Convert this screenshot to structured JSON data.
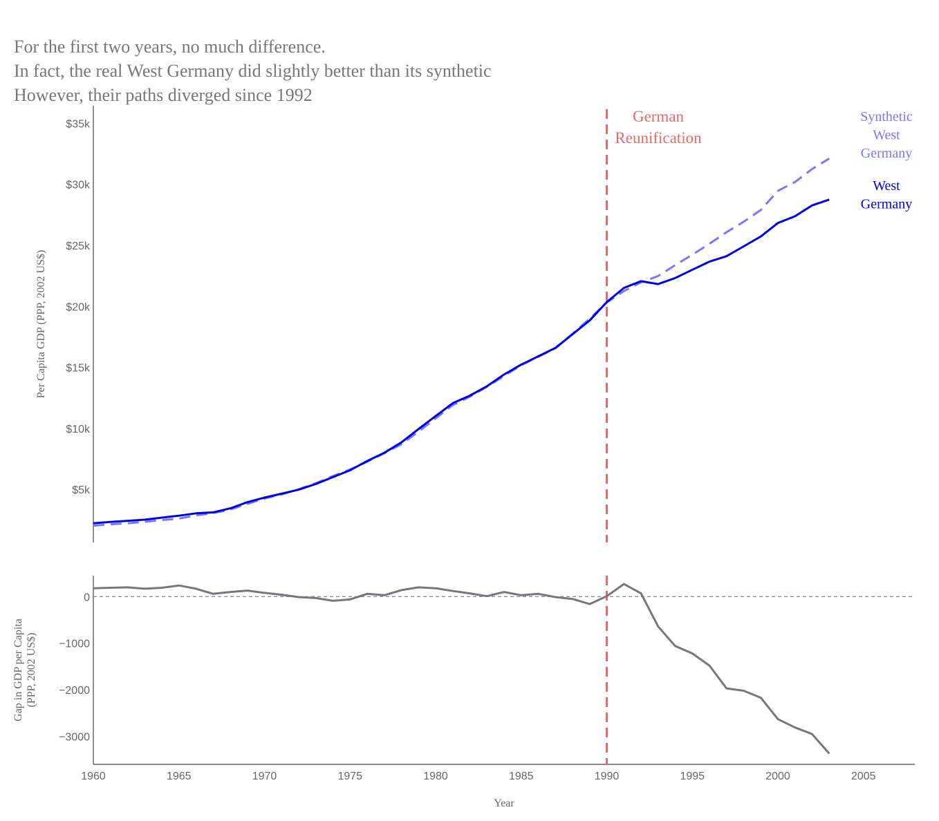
{
  "title_lines": [
    "For the first two years, no much difference.",
    "In fact, the real West Germany did slightly better than its synthetic",
    "However, their paths diverged since 1992"
  ],
  "chart_data": [
    {
      "type": "line",
      "panel": "top",
      "ylabel": "Per Capita GDP (PPP, 2002 US$)",
      "yticks": [
        5000,
        10000,
        15000,
        20000,
        25000,
        30000,
        35000
      ],
      "ytick_labels": [
        "$5k",
        "$10k",
        "$15k",
        "$20k",
        "$25k",
        "$30k",
        "$35k"
      ],
      "xlim": [
        1960,
        2008
      ],
      "ylim": [
        700,
        36500
      ],
      "grid": false,
      "x": [
        1960,
        1961,
        1962,
        1963,
        1964,
        1965,
        1966,
        1967,
        1968,
        1969,
        1970,
        1971,
        1972,
        1973,
        1974,
        1975,
        1976,
        1977,
        1978,
        1979,
        1980,
        1981,
        1982,
        1983,
        1984,
        1985,
        1986,
        1987,
        1988,
        1989,
        1990,
        1991,
        1992,
        1993,
        1994,
        1995,
        1996,
        1997,
        1998,
        1999,
        2000,
        2001,
        2002,
        2003
      ],
      "series": [
        {
          "name": "West Germany",
          "color": "#0000e6",
          "style": "solid",
          "values": [
            2280,
            2380,
            2480,
            2570,
            2740,
            2900,
            3090,
            3170,
            3500,
            4000,
            4380,
            4700,
            5030,
            5500,
            6060,
            6620,
            7380,
            8050,
            8900,
            10000,
            11060,
            12120,
            12740,
            13510,
            14470,
            15280,
            15960,
            16650,
            17770,
            18900,
            20400,
            21570,
            22120,
            21880,
            22380,
            23060,
            23720,
            24170,
            24970,
            25780,
            26890,
            27440,
            28330,
            28810
          ],
          "label": "West\nGermany"
        },
        {
          "name": "Synthetic West Germany",
          "color": "#7878ff",
          "style": "dashed",
          "values": [
            2080,
            2190,
            2280,
            2390,
            2540,
            2660,
            2920,
            3100,
            3400,
            3860,
            4300,
            4640,
            5070,
            5560,
            6150,
            6690,
            7310,
            8020,
            8750,
            9790,
            10860,
            11960,
            12650,
            13470,
            14350,
            15230,
            15930,
            16620,
            17810,
            19050,
            20370,
            21310,
            22020,
            22540,
            23440,
            24290,
            25190,
            26140,
            26990,
            27950,
            29520,
            30250,
            31310,
            32180
          ],
          "label": "Synthetic\nWest\nGermany"
        }
      ],
      "annotations": [
        {
          "text": "German\nReunification",
          "x": 1990,
          "color": "#e8696b"
        }
      ],
      "vline": {
        "x": 1990,
        "color": "#e8696b",
        "style": "dashed"
      }
    },
    {
      "type": "line",
      "panel": "bottom",
      "xlabel": "Year",
      "ylabel": "Gap in GDP per Capita\n(PPP, 2002 US$)",
      "xticks": [
        1960,
        1965,
        1970,
        1975,
        1980,
        1985,
        1990,
        1995,
        2000,
        2005
      ],
      "yticks": [
        0,
        -1000,
        -2000,
        -3000
      ],
      "ytick_labels": [
        "0",
        "−1000",
        "−2000",
        "−3000"
      ],
      "xlim": [
        1960,
        2008
      ],
      "ylim": [
        -3600,
        450
      ],
      "grid": false,
      "hline": {
        "y": 0,
        "color": "#8888bb",
        "style": "dashed"
      },
      "vline": {
        "x": 1990,
        "color": "#e8696b",
        "style": "dashed"
      },
      "x": [
        1960,
        1961,
        1962,
        1963,
        1964,
        1965,
        1966,
        1967,
        1968,
        1969,
        1970,
        1971,
        1972,
        1973,
        1974,
        1975,
        1976,
        1977,
        1978,
        1979,
        1980,
        1981,
        1982,
        1983,
        1984,
        1985,
        1986,
        1987,
        1988,
        1989,
        1990,
        1991,
        1992,
        1993,
        1994,
        1995,
        1996,
        1997,
        1998,
        1999,
        2000,
        2001,
        2002,
        2003
      ],
      "series": [
        {
          "name": "Gap",
          "color": "#777777",
          "style": "solid",
          "values": [
            180,
            190,
            200,
            170,
            190,
            240,
            170,
            60,
            100,
            130,
            80,
            40,
            -10,
            -30,
            -90,
            -60,
            60,
            30,
            140,
            200,
            180,
            120,
            70,
            10,
            100,
            30,
            60,
            -10,
            -50,
            -160,
            10,
            270,
            70,
            -640,
            -1060,
            -1220,
            -1480,
            -1970,
            -2020,
            -2170,
            -2630,
            -2810,
            -2950,
            -3370
          ]
        }
      ]
    }
  ]
}
